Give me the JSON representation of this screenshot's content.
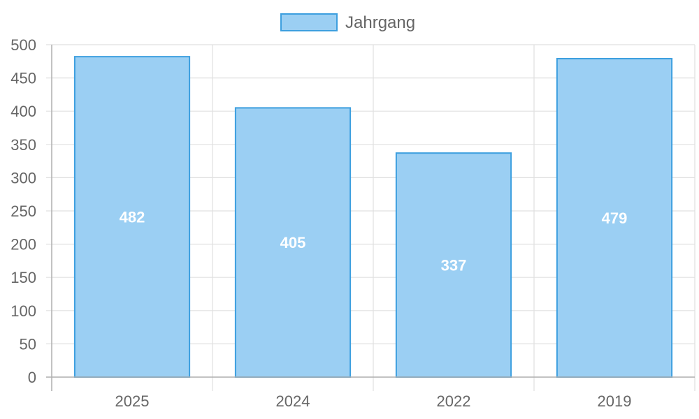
{
  "chart_data": {
    "type": "bar",
    "categories": [
      "2025",
      "2024",
      "2022",
      "2019"
    ],
    "series": [
      {
        "name": "Jahrgang",
        "values": [
          482,
          405,
          337,
          479
        ],
        "fill_color": "#9bcff3",
        "border_color": "#3d9fdf"
      }
    ],
    "ylim": [
      0,
      500
    ],
    "y_ticks": [
      "0",
      "50",
      "100",
      "150",
      "200",
      "250",
      "300",
      "350",
      "400",
      "450",
      "500"
    ],
    "data_labels": [
      "482",
      "405",
      "337",
      "479"
    ],
    "grid": true,
    "legend_position": "top-center",
    "grid_color": "#e0e0e0",
    "axis_color": "#b0b0b0",
    "text_color": "#666666"
  }
}
